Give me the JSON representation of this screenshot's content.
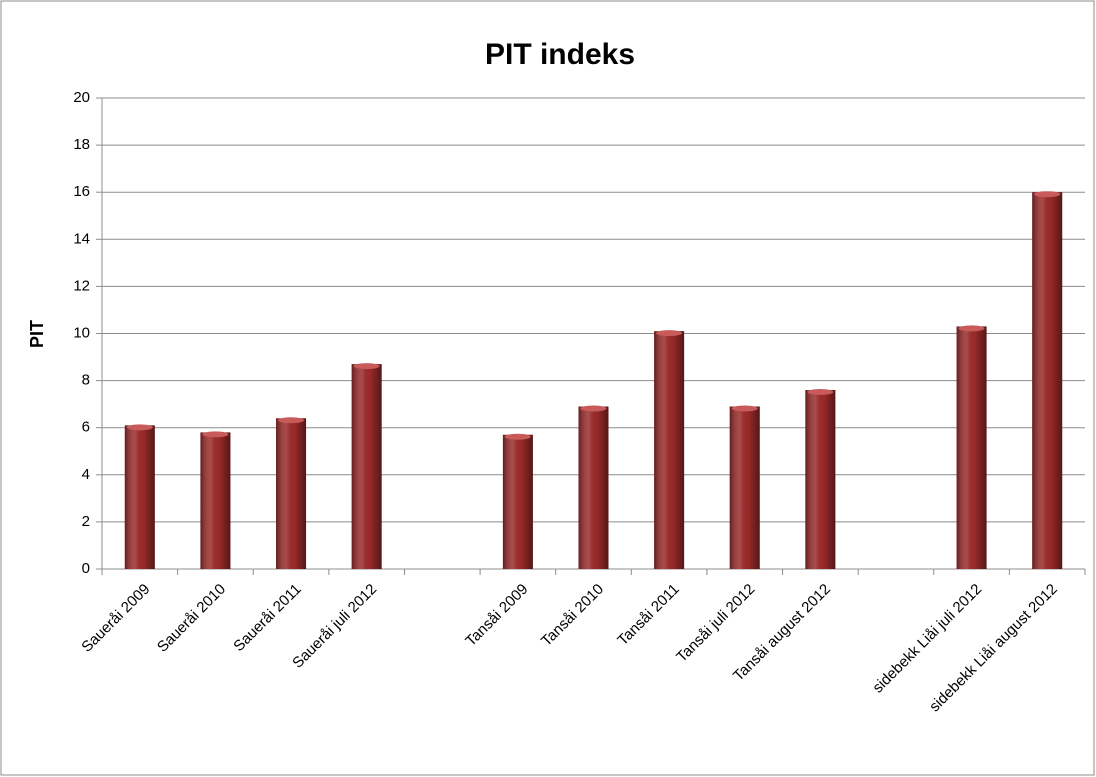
{
  "chart_data": {
    "type": "bar",
    "title": "PIT indeks",
    "y_label": "PIT",
    "categories": [
      "Saueråi 2009",
      "Saueråi 2010",
      "Saueråi 2011",
      "Saueråi juli 2012",
      null,
      "Tansåi 2009",
      "Tansåi 2010",
      "Tansåi 2011",
      "Tansåi juli 2012",
      "Tansåi august 2012",
      null,
      "sidebekk Liåi juli 2012",
      "sidebekk Liåi august 2012"
    ],
    "values": [
      6.1,
      5.8,
      6.4,
      8.7,
      null,
      5.7,
      6.9,
      10.1,
      6.9,
      7.6,
      null,
      10.3,
      16.0
    ],
    "color": "#9b2a2a",
    "ylim": [
      0,
      20
    ],
    "yticks": [
      0,
      2,
      4,
      6,
      8,
      10,
      12,
      14,
      16,
      18,
      20
    ],
    "grid": true
  }
}
